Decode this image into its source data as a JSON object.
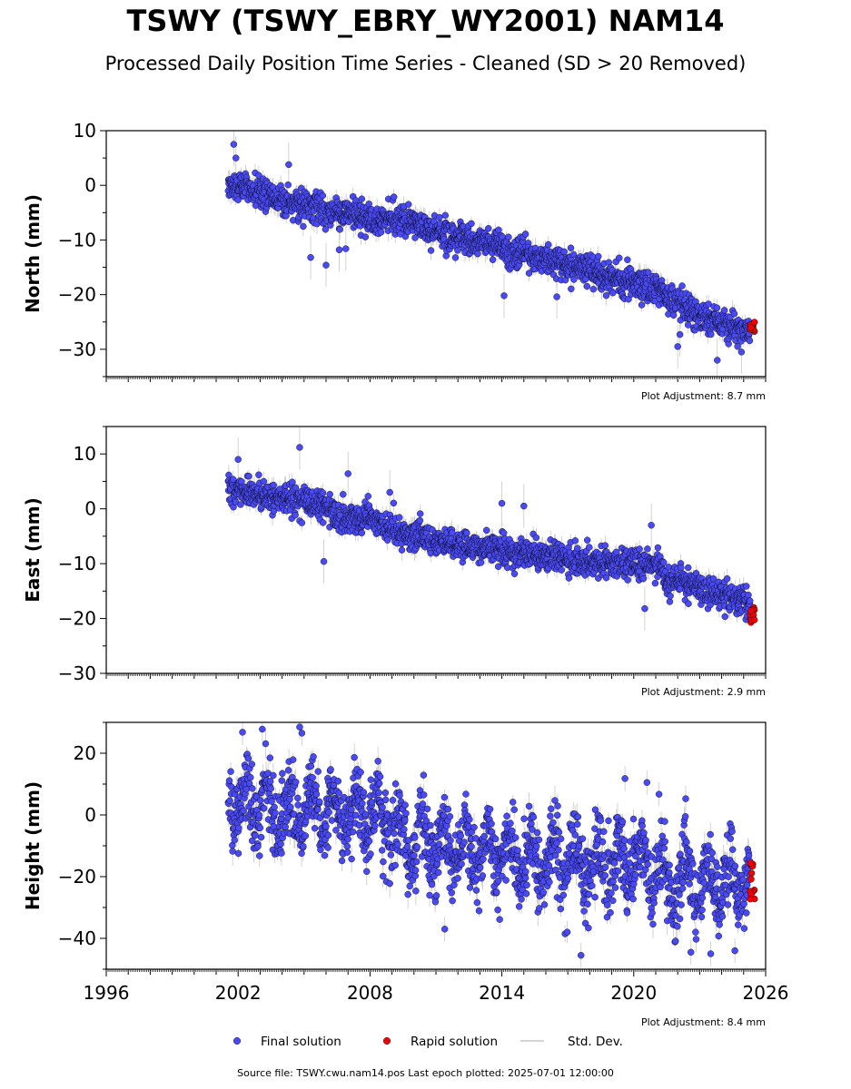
{
  "title": "TSWY (TSWY_EBRY_WY2001) NAM14",
  "subtitle": "Processed Daily Position Time Series - Cleaned (SD > 20 Removed)",
  "source_text": "Source file: TSWY.cwu.nam14.pos  Last epoch plotted: 2025-07-01 12:00:00",
  "colors": {
    "final": "#4a4af4",
    "rapid": "#ee0000",
    "stddev": "#c8c8c8",
    "edge": "#000000"
  },
  "legend": [
    {
      "label": "Final solution",
      "kind": "final"
    },
    {
      "label": "Rapid solution",
      "kind": "rapid"
    },
    {
      "label": "Std. Dev.",
      "kind": "stddev"
    }
  ],
  "chart_data": [
    {
      "type": "scatter",
      "ylabel": "North (mm)",
      "xlim": [
        1996,
        2026
      ],
      "ylim": [
        -35,
        10
      ],
      "yticks": [
        10,
        0,
        -10,
        -20,
        -30
      ],
      "xticks": [],
      "annotation": "Plot Adjustment: 8.7 mm",
      "trend": [
        [
          2001.5,
          0.5
        ],
        [
          2004,
          -2.5
        ],
        [
          2007,
          -5.5
        ],
        [
          2010,
          -7
        ],
        [
          2012.5,
          -10
        ],
        [
          2016,
          -13.5
        ],
        [
          2019,
          -17
        ],
        [
          2021.3,
          -19.5
        ],
        [
          2021.5,
          -21
        ],
        [
          2023,
          -24
        ],
        [
          2025.4,
          -27
        ]
      ],
      "scatter_sd": 1.4,
      "outliers": [
        [
          2001.8,
          7.5
        ],
        [
          2001.9,
          5
        ],
        [
          2004.3,
          3.8
        ],
        [
          2005.3,
          -13.2
        ],
        [
          2006.0,
          -14.6
        ],
        [
          2006.6,
          -11.8
        ],
        [
          2006.9,
          -11.6
        ],
        [
          2014.1,
          -20.2
        ],
        [
          2016.5,
          -20.4
        ],
        [
          2022.0,
          -29.5
        ],
        [
          2023.8,
          -32.0
        ],
        [
          2024.9,
          -30.5
        ],
        [
          2022.1,
          -27.3
        ]
      ],
      "rapid": {
        "x_start": 2025.3,
        "x_end": 2025.5,
        "y_range": [
          -28,
          -25
        ]
      }
    },
    {
      "type": "scatter",
      "ylabel": "East (mm)",
      "xlim": [
        1996,
        2026
      ],
      "ylim": [
        -30,
        15
      ],
      "yticks": [
        10,
        0,
        -10,
        -20,
        -30
      ],
      "xticks": [],
      "annotation": "Plot Adjustment: 2.9 mm",
      "trend": [
        [
          2001.5,
          4
        ],
        [
          2004,
          2
        ],
        [
          2006.1,
          0.5
        ],
        [
          2006.5,
          -2
        ],
        [
          2008,
          -2
        ],
        [
          2010,
          -5
        ],
        [
          2013,
          -7
        ],
        [
          2016,
          -8.5
        ],
        [
          2019,
          -10
        ],
        [
          2021.3,
          -10.5
        ],
        [
          2021.5,
          -13
        ],
        [
          2023,
          -14.5
        ],
        [
          2025.3,
          -17.5
        ],
        [
          2025.5,
          -20
        ]
      ],
      "scatter_sd": 1.3,
      "outliers": [
        [
          2002,
          9
        ],
        [
          2004.8,
          11.2
        ],
        [
          2005.9,
          -9.6
        ],
        [
          2007.0,
          6.4
        ],
        [
          2014.0,
          1
        ],
        [
          2015.0,
          0.5
        ],
        [
          2020.5,
          -18.2
        ],
        [
          2020.8,
          -3
        ],
        [
          2008.9,
          3
        ]
      ],
      "rapid": {
        "x_start": 2025.3,
        "x_end": 2025.5,
        "y_range": [
          -21,
          -18
        ]
      }
    },
    {
      "type": "scatter",
      "ylabel": "Height (mm)",
      "xlim": [
        1996,
        2026
      ],
      "ylim": [
        -50,
        30
      ],
      "yticks": [
        20,
        0,
        -20,
        -40
      ],
      "xticks": [
        1996,
        2002,
        2008,
        2014,
        2020,
        2026
      ],
      "annotation": "Plot Adjustment: 8.4 mm",
      "trend": [
        [
          2001.5,
          3
        ],
        [
          2005.5,
          2
        ],
        [
          2008,
          0
        ],
        [
          2010,
          -10
        ],
        [
          2014,
          -12
        ],
        [
          2018,
          -16
        ],
        [
          2021.3,
          -17
        ],
        [
          2021.5,
          -22
        ],
        [
          2025.4,
          -20
        ]
      ],
      "scatter_sd": 6.0,
      "seasonal_amp": 7.0,
      "outliers": [
        [
          2002.2,
          26.8
        ],
        [
          2003.1,
          27.8
        ],
        [
          2004.8,
          28.5
        ],
        [
          2004.9,
          26.5
        ],
        [
          2019.6,
          11.8
        ],
        [
          2020.6,
          10.5
        ],
        [
          2022.6,
          -44.5
        ],
        [
          2023.5,
          -45.0
        ],
        [
          2024.6,
          -44
        ],
        [
          2017.6,
          -45.5
        ],
        [
          2011.4,
          -37
        ]
      ],
      "rapid": {
        "x_start": 2025.3,
        "x_end": 2025.5,
        "y_range": [
          -30,
          -15
        ]
      }
    }
  ]
}
